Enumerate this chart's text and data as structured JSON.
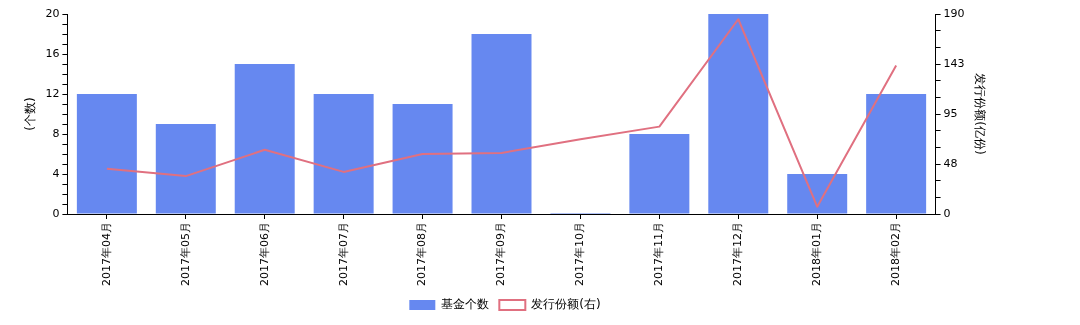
{
  "chart_data": {
    "type": "bar",
    "categories": [
      "2017年04月",
      "2017年05月",
      "2017年06月",
      "2017年07月",
      "2017年08月",
      "2017年09月",
      "2017年10月",
      "2017年11月",
      "2017年12月",
      "2018年01月",
      "2018年02月"
    ],
    "series": [
      {
        "name": "基金个数",
        "type": "bar",
        "color": "#6688f0",
        "values": [
          12,
          9,
          15,
          12,
          11,
          18,
          0.1,
          8,
          20,
          4,
          12
        ]
      },
      {
        "name": "发行份额(右)",
        "type": "line",
        "axis": "y2",
        "color": "#e07080",
        "values": [
          43,
          36,
          61,
          40,
          57,
          58,
          71,
          83,
          185,
          7,
          141
        ]
      }
    ],
    "ylabel": "(个数)",
    "y2label": "发行份额(亿份)",
    "ylim": [
      0,
      20
    ],
    "yticks": [
      0,
      {
        "value": 1,
        "label": null
      },
      {
        "value": 2,
        "label": null
      },
      {
        "value": 3,
        "label": null
      },
      4,
      {
        "value": 5,
        "label": null
      },
      {
        "value": 6,
        "label": null
      },
      {
        "value": 7,
        "label": null
      },
      8,
      {
        "value": 9,
        "label": null
      },
      {
        "value": 10,
        "label": null
      },
      {
        "value": 11,
        "label": null
      },
      12,
      {
        "value": 13,
        "label": null
      },
      {
        "value": 14,
        "label": null
      },
      {
        "value": 15,
        "label": null
      },
      16,
      {
        "value": 17,
        "label": null
      },
      {
        "value": 18,
        "label": null
      },
      {
        "value": 19,
        "label": null
      },
      20
    ],
    "y2lim": [
      0,
      190
    ],
    "y2ticks": [
      0,
      {
        "value": 15.83,
        "label": null
      },
      {
        "value": 31.67,
        "label": null
      },
      {
        "value": 47.5,
        "label": "48"
      },
      {
        "value": 63.33,
        "label": null
      },
      {
        "value": 79.17,
        "label": null
      },
      95,
      {
        "value": 110.83,
        "label": null
      },
      {
        "value": 126.67,
        "label": null
      },
      {
        "value": 142.5,
        "label": "143"
      },
      {
        "value": 158.33,
        "label": null
      },
      {
        "value": 174.17,
        "label": null
      },
      190
    ],
    "legend": "bottom",
    "marker": "none"
  }
}
